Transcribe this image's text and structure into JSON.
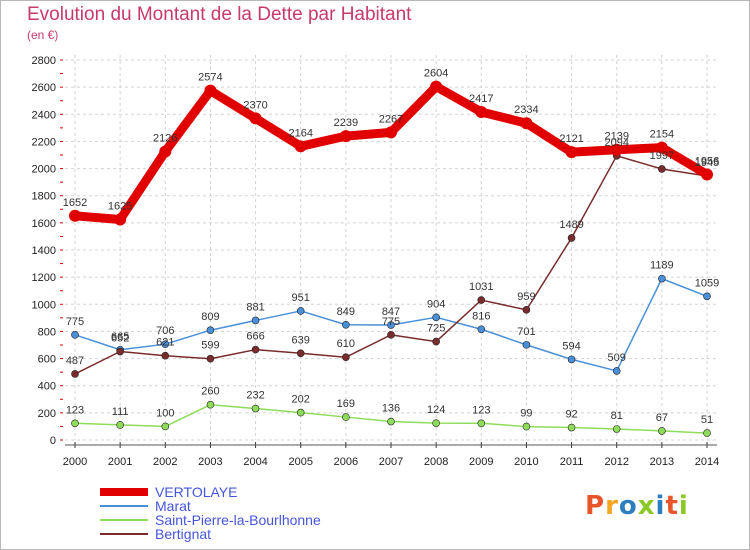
{
  "title": "Evolution du Montant de la Dette par Habitant",
  "subtitle": "(en €)",
  "logo": {
    "text": "Proxiti",
    "colors": [
      "#e8542c",
      "#f5a623",
      "#2d7fc1",
      "#8ac926",
      "#2d7fc1",
      "#e8542c",
      "#8ac926"
    ]
  },
  "chart_data": {
    "type": "line",
    "x": [
      2000,
      2001,
      2002,
      2003,
      2004,
      2005,
      2006,
      2007,
      2008,
      2009,
      2010,
      2011,
      2012,
      2013,
      2014
    ],
    "ylim": [
      0,
      2800
    ],
    "yticks": [
      0,
      200,
      400,
      600,
      800,
      1000,
      1200,
      1400,
      1600,
      1800,
      2000,
      2200,
      2400,
      2600,
      2800
    ],
    "grid": true,
    "legend_position": "bottom-left",
    "series": [
      {
        "name": "VERTOLAYE",
        "color": "#e00000",
        "values": [
          1652,
          1625,
          2126,
          2574,
          2370,
          2164,
          2239,
          2267,
          2604,
          2417,
          2334,
          2121,
          2139,
          2154,
          1956
        ]
      },
      {
        "name": "Marat",
        "color": "#4a90d9",
        "values": [
          775,
          665,
          706,
          809,
          881,
          951,
          849,
          847,
          904,
          816,
          701,
          594,
          509,
          1189,
          1059
        ]
      },
      {
        "name": "Saint-Pierre-la-Bourlhonne",
        "color": "#8fdc5a",
        "values": [
          123,
          111,
          100,
          260,
          232,
          202,
          169,
          136,
          124,
          123,
          99,
          92,
          81,
          67,
          51
        ]
      },
      {
        "name": "Bertignat",
        "color": "#7a2c2c",
        "values": [
          487,
          652,
          621,
          599,
          666,
          639,
          610,
          775,
          725,
          1031,
          959,
          1489,
          2094,
          1997,
          1945
        ]
      }
    ]
  }
}
